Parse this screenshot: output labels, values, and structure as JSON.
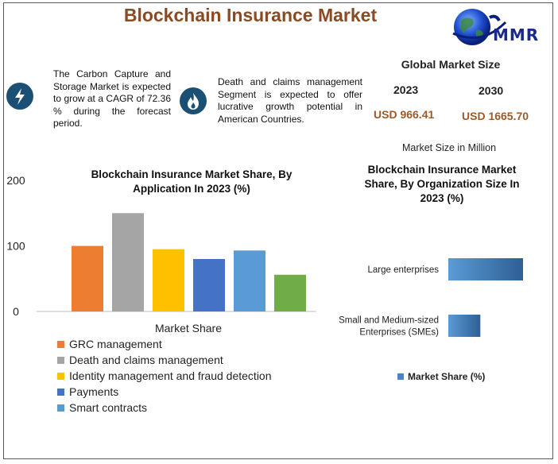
{
  "header": {
    "title": "Blockchain Insurance Market",
    "logo_text": "MMR"
  },
  "info": [
    {
      "icon": "lightning-icon",
      "text": "The Carbon Capture and Storage Market is expected to grow at a CAGR of 72.36 % during the forecast period."
    },
    {
      "icon": "flame-icon",
      "text": "Death and claims management Segment is expected to offer lucrative growth potential in American Countries."
    }
  ],
  "market_size": {
    "title": "Global Market Size",
    "year_a": "2023",
    "year_b": "2030",
    "value_a": "USD 966.41",
    "value_b": "USD 1665.70",
    "unit_note": "Market Size in Million"
  },
  "colors": {
    "title": "#8b4a22",
    "usd": "#9c5a2a",
    "icon_bg": "#1b4f73",
    "logo": "#1b2a8a"
  },
  "chart_data": [
    {
      "type": "bar",
      "title": "Blockchain Insurance Market Share, By Application In 2023 (%)",
      "xlabel": "Market Share",
      "ylabel": "",
      "ylim": [
        0,
        200
      ],
      "yticks": [
        0,
        100,
        200
      ],
      "legend_position": "bottom",
      "series": [
        {
          "name": "GRC management",
          "value": 100,
          "color": "#ed7d31"
        },
        {
          "name": "Death and claims management",
          "value": 150,
          "color": "#a5a5a5"
        },
        {
          "name": "Identity management and fraud detection",
          "value": 95,
          "color": "#ffc000"
        },
        {
          "name": "Payments",
          "value": 80,
          "color": "#4472c4"
        },
        {
          "name": "Smart contracts",
          "value": 93,
          "color": "#5b9bd5"
        },
        {
          "name": "",
          "value": 56,
          "color": "#70ad47"
        }
      ]
    },
    {
      "type": "bar",
      "orientation": "horizontal",
      "title": "Blockchain Insurance Market Share, By Organization Size In 2023 (%)",
      "categories": [
        "Large enterprises",
        "Small and Medium-sized Enterprises (SMEs)"
      ],
      "category_lines": [
        [
          "Large enterprises"
        ],
        [
          "Small and Medium-sized",
          "Enterprises (SMEs)"
        ]
      ],
      "values": [
        70,
        30
      ],
      "xlim": [
        0,
        70
      ],
      "legend": "Market Share (%)",
      "legend_position": "bottom"
    }
  ]
}
